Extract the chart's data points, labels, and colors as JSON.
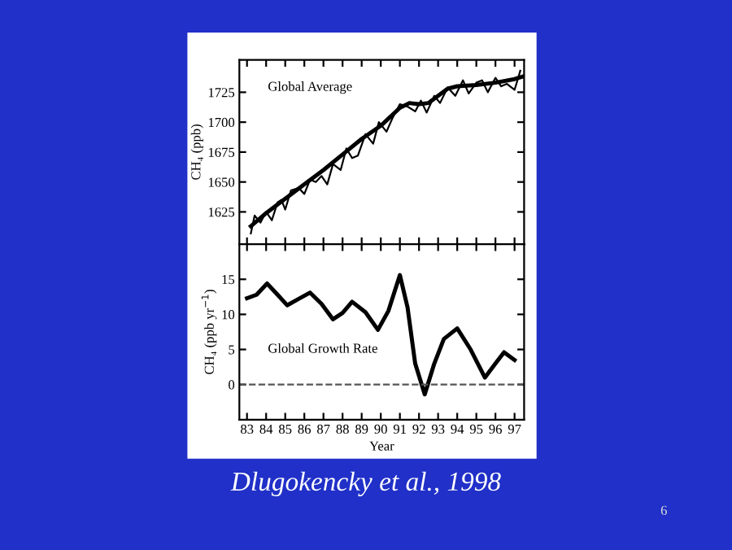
{
  "chart_data": [
    {
      "type": "line",
      "ylabel": "CH₄ (ppb)",
      "annotations": [
        "Global Average"
      ],
      "xlim": [
        82.6,
        97.5
      ],
      "xticks": [
        83,
        84,
        85,
        86,
        87,
        88,
        89,
        90,
        91,
        92,
        93,
        94,
        95,
        96,
        97
      ],
      "ylim": [
        1598,
        1752
      ],
      "yticks": [
        1625,
        1650,
        1675,
        1700,
        1725
      ],
      "tick_labels": "y",
      "series": [
        {
          "color": "#000000",
          "x": [
            83.2,
            83.4,
            83.7,
            84.0,
            84.3,
            84.6,
            84.8,
            85.0,
            85.3,
            85.7,
            86.0,
            86.3,
            86.6,
            86.9,
            87.2,
            87.5,
            87.9,
            88.2,
            88.5,
            88.8,
            89.2,
            89.6,
            89.9,
            90.3,
            90.6,
            91.0,
            91.4,
            91.8,
            92.1,
            92.4,
            92.8,
            93.1,
            93.5,
            93.9,
            94.3,
            94.6,
            95.0,
            95.3,
            95.6,
            96.0,
            96.3,
            96.6,
            97.0,
            97.3
          ],
          "values": [
            1607,
            1622,
            1616,
            1625,
            1618,
            1633,
            1635,
            1627,
            1643,
            1645,
            1640,
            1652,
            1650,
            1655,
            1648,
            1665,
            1660,
            1678,
            1670,
            1672,
            1690,
            1682,
            1700,
            1692,
            1703,
            1715,
            1713,
            1709,
            1718,
            1708,
            1722,
            1716,
            1729,
            1722,
            1735,
            1724,
            1733,
            1735,
            1725,
            1737,
            1730,
            1732,
            1727,
            1743
          ]
        },
        {
          "color": "#000000",
          "x": [
            83.2,
            84,
            85,
            86,
            87,
            88,
            89,
            90,
            91,
            91.5,
            92,
            92.5,
            93,
            93.5,
            94,
            95,
            96,
            97,
            97.4
          ],
          "values": [
            1613,
            1624,
            1636,
            1648,
            1660,
            1673,
            1686,
            1697,
            1712,
            1716,
            1715,
            1716,
            1722,
            1728,
            1730,
            1731,
            1733,
            1736,
            1738
          ]
        }
      ]
    },
    {
      "type": "line",
      "ylabel": "CH₄ (ppb yr$^{−1}$)",
      "xlabel": "Year",
      "annotations": [
        "Global Growth Rate",
        "Dlugokencky et al., 1998",
        "6"
      ],
      "xlim": [
        82.6,
        97.5
      ],
      "xticks": [
        83,
        84,
        85,
        86,
        87,
        88,
        89,
        90,
        91,
        92,
        93,
        94,
        95,
        96,
        97
      ],
      "ylim": [
        -5,
        20
      ],
      "yticks": [
        0,
        5,
        10,
        15
      ],
      "ref_lines": [
        {
          "axis": "y",
          "value": 0,
          "color": "#555555",
          "line_style": "dashed"
        }
      ],
      "series": [
        {
          "color": "#000000",
          "x": [
            83.0,
            83.5,
            84.05,
            84.6,
            85.1,
            85.7,
            86.3,
            86.9,
            87.5,
            88.0,
            88.5,
            89.2,
            89.85,
            90.4,
            91.0,
            91.4,
            91.8,
            92.3,
            92.8,
            93.3,
            94.0,
            94.7,
            95.45,
            96.0,
            96.45,
            97.0
          ],
          "values": [
            12.3,
            12.8,
            14.4,
            12.8,
            11.3,
            12.2,
            13.1,
            11.5,
            9.3,
            10.2,
            11.8,
            10.3,
            7.8,
            10.5,
            15.6,
            11,
            3,
            -1.4,
            3,
            6.5,
            8,
            5,
            1,
            3,
            4.6,
            3.5
          ]
        }
      ]
    }
  ]
}
